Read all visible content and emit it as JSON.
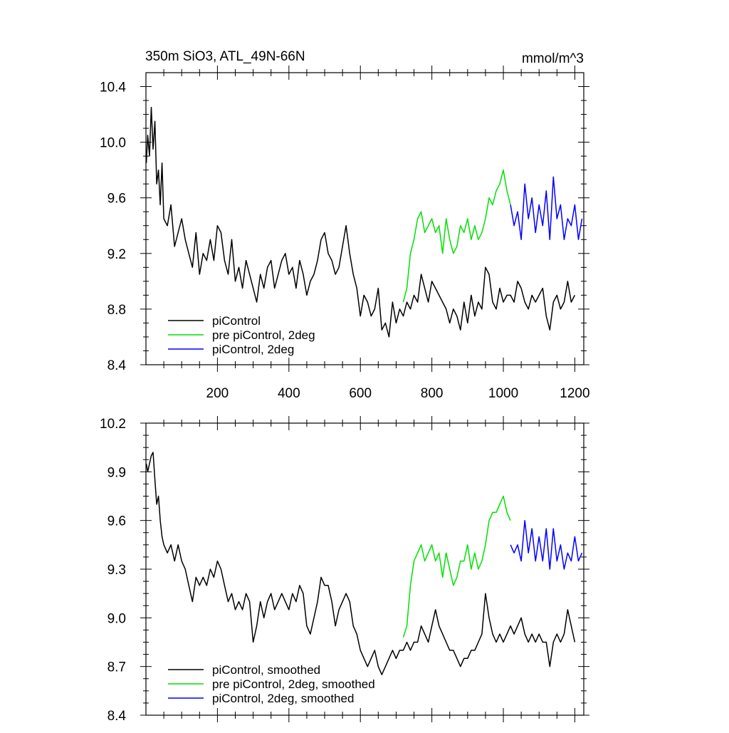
{
  "chart_data": [
    {
      "type": "line",
      "title_left": "350m SiO3, ATL_49N-66N",
      "title_right": "mmol/m^3",
      "xlim": [
        0,
        1225
      ],
      "ylim": [
        8.4,
        10.5
      ],
      "yticks": [
        "10.4",
        "10.0",
        "9.6",
        "9.2",
        "8.8",
        "8.4"
      ],
      "yticks_values": [
        10.4,
        10.0,
        9.6,
        9.2,
        8.8,
        8.4
      ],
      "xticks": [
        "200",
        "400",
        "600",
        "800",
        "1000",
        "1200"
      ],
      "xticks_values": [
        200,
        400,
        600,
        800,
        1000,
        1200
      ],
      "legend": {
        "placement": "bottom-left",
        "entries": [
          "piControl",
          "pre piControl, 2deg",
          "piControl, 2deg"
        ]
      },
      "series": [
        {
          "name": "piControl",
          "color": "#000000",
          "x": [
            1,
            5,
            10,
            15,
            20,
            25,
            30,
            35,
            40,
            45,
            50,
            60,
            70,
            80,
            90,
            100,
            110,
            120,
            130,
            140,
            150,
            160,
            170,
            180,
            190,
            200,
            210,
            220,
            230,
            240,
            250,
            260,
            270,
            280,
            290,
            300,
            310,
            320,
            330,
            340,
            350,
            360,
            370,
            380,
            390,
            400,
            410,
            420,
            430,
            440,
            450,
            460,
            470,
            480,
            490,
            500,
            510,
            520,
            530,
            540,
            550,
            560,
            570,
            580,
            590,
            600,
            610,
            620,
            630,
            640,
            650,
            660,
            670,
            680,
            690,
            700,
            710,
            720,
            730,
            740,
            750,
            760,
            770,
            780,
            790,
            800,
            810,
            820,
            830,
            840,
            850,
            860,
            870,
            880,
            890,
            900,
            910,
            920,
            930,
            940,
            950,
            960,
            970,
            980,
            990,
            1000,
            1010,
            1020,
            1030,
            1040,
            1050,
            1060,
            1070,
            1080,
            1090,
            1100,
            1110,
            1120,
            1130,
            1140,
            1150,
            1160,
            1170,
            1180,
            1190,
            1200
          ],
          "y": [
            9.85,
            10.05,
            9.9,
            10.25,
            9.95,
            10.15,
            9.7,
            9.8,
            9.55,
            9.85,
            9.45,
            9.4,
            9.55,
            9.25,
            9.35,
            9.45,
            9.3,
            9.2,
            9.1,
            9.35,
            9.05,
            9.2,
            9.15,
            9.3,
            9.15,
            9.4,
            9.35,
            9.15,
            9.05,
            9.3,
            9.0,
            9.1,
            8.95,
            9.15,
            9.05,
            8.95,
            8.85,
            9.05,
            8.95,
            9.1,
            9.15,
            8.95,
            9.05,
            9.15,
            9.2,
            9.05,
            9.1,
            8.95,
            9.15,
            9.05,
            8.9,
            9.0,
            9.05,
            9.15,
            9.3,
            9.35,
            9.2,
            9.15,
            9.05,
            9.1,
            9.25,
            9.4,
            9.2,
            9.05,
            8.95,
            8.75,
            8.9,
            8.85,
            8.75,
            8.8,
            8.95,
            8.65,
            8.7,
            8.6,
            8.85,
            8.7,
            8.8,
            8.75,
            8.85,
            8.8,
            8.9,
            8.85,
            9.05,
            8.95,
            8.85,
            9.0,
            8.95,
            8.9,
            8.85,
            8.8,
            8.7,
            8.8,
            8.75,
            8.65,
            8.85,
            8.7,
            8.9,
            8.75,
            8.85,
            8.8,
            9.1,
            9.05,
            8.85,
            8.8,
            8.95,
            8.85,
            8.9,
            8.9,
            8.85,
            9.0,
            8.95,
            8.85,
            8.8,
            8.9,
            8.85,
            8.9,
            8.95,
            8.75,
            8.65,
            8.85,
            8.9,
            8.8,
            8.85,
            9.0,
            8.85,
            8.9
          ]
        },
        {
          "name": "pre piControl, 2deg",
          "color": "#00e000",
          "x": [
            720,
            730,
            740,
            750,
            760,
            770,
            780,
            790,
            800,
            810,
            820,
            830,
            840,
            850,
            860,
            870,
            880,
            890,
            900,
            910,
            920,
            930,
            940,
            950,
            960,
            970,
            980,
            990,
            1000,
            1010,
            1020
          ],
          "y": [
            8.85,
            8.95,
            9.2,
            9.3,
            9.45,
            9.5,
            9.35,
            9.4,
            9.45,
            9.35,
            9.4,
            9.2,
            9.45,
            9.3,
            9.2,
            9.25,
            9.4,
            9.35,
            9.45,
            9.3,
            9.4,
            9.3,
            9.35,
            9.45,
            9.6,
            9.55,
            9.65,
            9.7,
            9.8,
            9.65,
            9.55
          ]
        },
        {
          "name": "piControl, 2deg",
          "color": "#0000ff",
          "x": [
            1020,
            1030,
            1040,
            1050,
            1060,
            1070,
            1080,
            1090,
            1100,
            1110,
            1120,
            1130,
            1140,
            1150,
            1160,
            1170,
            1180,
            1190,
            1200,
            1210,
            1220
          ],
          "y": [
            9.55,
            9.4,
            9.5,
            9.3,
            9.7,
            9.45,
            9.6,
            9.35,
            9.55,
            9.4,
            9.65,
            9.3,
            9.75,
            9.45,
            9.55,
            9.3,
            9.45,
            9.4,
            9.55,
            9.3,
            9.45
          ]
        }
      ]
    },
    {
      "type": "line",
      "xlim": [
        0,
        1225
      ],
      "ylim": [
        8.4,
        10.2
      ],
      "yticks": [
        "10.2",
        "9.9",
        "9.6",
        "9.3",
        "9.0",
        "8.7",
        "8.4"
      ],
      "yticks_values": [
        10.2,
        9.9,
        9.6,
        9.3,
        9.0,
        8.7,
        8.4
      ],
      "xticks_values": [
        200,
        400,
        600,
        800,
        1000,
        1200
      ],
      "legend": {
        "placement": "bottom-left",
        "entries": [
          "piControl, smoothed",
          "pre piControl, 2deg, smoothed",
          "piControl, 2deg, smoothed"
        ]
      },
      "series": [
        {
          "name": "piControl, smoothed",
          "color": "#000000",
          "x": [
            1,
            5,
            10,
            15,
            20,
            25,
            30,
            35,
            40,
            45,
            50,
            60,
            70,
            80,
            90,
            100,
            110,
            120,
            130,
            140,
            150,
            160,
            170,
            180,
            190,
            200,
            210,
            220,
            230,
            240,
            250,
            260,
            270,
            280,
            290,
            300,
            310,
            320,
            330,
            340,
            350,
            360,
            370,
            380,
            390,
            400,
            410,
            420,
            430,
            440,
            450,
            460,
            470,
            480,
            490,
            500,
            510,
            520,
            530,
            540,
            550,
            560,
            570,
            580,
            590,
            600,
            610,
            620,
            630,
            640,
            650,
            660,
            670,
            680,
            690,
            700,
            710,
            720,
            730,
            740,
            750,
            760,
            770,
            780,
            790,
            800,
            810,
            820,
            830,
            840,
            850,
            860,
            870,
            880,
            890,
            900,
            910,
            920,
            930,
            940,
            950,
            960,
            970,
            980,
            990,
            1000,
            1010,
            1020,
            1030,
            1040,
            1050,
            1060,
            1070,
            1080,
            1090,
            1100,
            1110,
            1120,
            1130,
            1140,
            1150,
            1160,
            1170,
            1180,
            1190,
            1200
          ],
          "y": [
            9.95,
            9.9,
            9.95,
            10.0,
            10.02,
            9.85,
            9.7,
            9.75,
            9.6,
            9.5,
            9.45,
            9.4,
            9.45,
            9.35,
            9.45,
            9.35,
            9.3,
            9.2,
            9.1,
            9.25,
            9.2,
            9.25,
            9.2,
            9.3,
            9.25,
            9.35,
            9.3,
            9.2,
            9.1,
            9.15,
            9.05,
            9.1,
            9.05,
            9.15,
            9.1,
            8.85,
            8.95,
            9.1,
            9.0,
            9.1,
            9.15,
            9.05,
            9.1,
            9.15,
            9.1,
            9.05,
            9.15,
            9.1,
            9.2,
            9.15,
            8.95,
            8.9,
            9.0,
            9.1,
            9.25,
            9.2,
            9.2,
            9.1,
            8.95,
            9.05,
            9.1,
            9.15,
            9.1,
            8.95,
            8.9,
            8.8,
            8.75,
            8.7,
            8.75,
            8.8,
            8.7,
            8.65,
            8.7,
            8.75,
            8.8,
            8.75,
            8.8,
            8.8,
            8.85,
            8.8,
            8.85,
            8.85,
            8.95,
            8.9,
            8.85,
            8.95,
            9.05,
            8.95,
            8.9,
            8.85,
            8.8,
            8.8,
            8.75,
            8.7,
            8.75,
            8.75,
            8.8,
            8.8,
            8.85,
            8.9,
            9.15,
            9.0,
            8.9,
            8.85,
            8.9,
            8.85,
            8.9,
            8.95,
            8.9,
            8.95,
            9.0,
            8.9,
            8.85,
            8.9,
            8.85,
            8.9,
            8.85,
            8.85,
            8.7,
            8.85,
            8.9,
            8.85,
            8.9,
            9.05,
            8.95,
            8.85
          ]
        },
        {
          "name": "pre piControl, 2deg, smoothed",
          "color": "#00e000",
          "x": [
            720,
            730,
            740,
            750,
            760,
            770,
            780,
            790,
            800,
            810,
            820,
            830,
            840,
            850,
            860,
            870,
            880,
            890,
            900,
            910,
            920,
            930,
            940,
            950,
            960,
            970,
            980,
            990,
            1000,
            1010,
            1020
          ],
          "y": [
            8.88,
            8.95,
            9.2,
            9.35,
            9.4,
            9.45,
            9.35,
            9.4,
            9.45,
            9.35,
            9.4,
            9.25,
            9.4,
            9.3,
            9.2,
            9.25,
            9.35,
            9.35,
            9.45,
            9.3,
            9.4,
            9.3,
            9.35,
            9.45,
            9.6,
            9.65,
            9.65,
            9.7,
            9.75,
            9.65,
            9.6
          ]
        },
        {
          "name": "piControl, 2deg, smoothed",
          "color": "#0000ff",
          "x": [
            1020,
            1030,
            1040,
            1050,
            1060,
            1070,
            1080,
            1090,
            1100,
            1110,
            1120,
            1130,
            1140,
            1150,
            1160,
            1170,
            1180,
            1190,
            1200,
            1210,
            1220
          ],
          "y": [
            9.45,
            9.4,
            9.45,
            9.35,
            9.6,
            9.4,
            9.55,
            9.35,
            9.5,
            9.35,
            9.55,
            9.3,
            9.55,
            9.35,
            9.45,
            9.3,
            9.4,
            9.35,
            9.5,
            9.35,
            9.4
          ]
        }
      ]
    }
  ]
}
